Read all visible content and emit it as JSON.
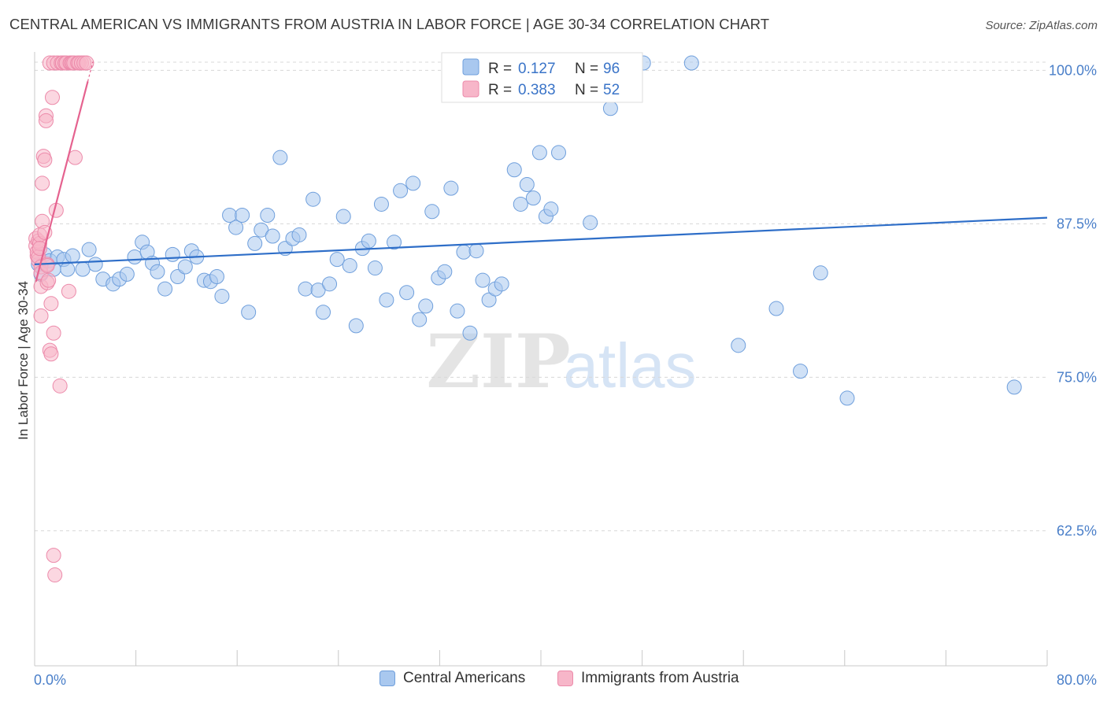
{
  "title": "CENTRAL AMERICAN VS IMMIGRANTS FROM AUSTRIA IN LABOR FORCE | AGE 30-34 CORRELATION CHART",
  "source": "Source: ZipAtlas.com",
  "watermark": {
    "zip": "ZIP",
    "atlas": "atlas"
  },
  "legend_top": [
    {
      "r_label": "R =",
      "r_value": "0.127",
      "n_label": "N =",
      "n_value": "96"
    },
    {
      "r_label": "R =",
      "r_value": "0.383",
      "n_label": "N =",
      "n_value": "52"
    }
  ],
  "legend_bottom": [
    "Central Americans",
    "Immigrants from Austria"
  ],
  "colors": {
    "blue_fill": "#a9c8ef",
    "blue_stroke": "#6f9fdc",
    "blue_line": "#2e6ec8",
    "pink_fill": "#f7b6c9",
    "pink_stroke": "#ec8aaa",
    "pink_line": "#e5628f",
    "grid": "#d8d8d8",
    "tick_text": "#4a7fc9"
  },
  "chart_data": {
    "type": "scatter",
    "title": "CENTRAL AMERICAN VS IMMIGRANTS FROM AUSTRIA IN LABOR FORCE | AGE 30-34 CORRELATION CHART",
    "xlabel": "",
    "ylabel": "In Labor Force | Age 30-34",
    "xlim": [
      0,
      80
    ],
    "ylim": [
      51.5,
      101.5
    ],
    "x_tick_labels": [
      "0.0%",
      "80.0%"
    ],
    "y_ticks": [
      62.5,
      75.0,
      87.5,
      100.0
    ],
    "y_tick_labels": [
      "62.5%",
      "75.0%",
      "87.5%",
      "100.0%"
    ],
    "grid": "horizontal dashed",
    "series": [
      {
        "name": "Central Americans",
        "r": 0.127,
        "n": 96,
        "trend": {
          "x": [
            0,
            80
          ],
          "y": [
            84.2,
            88.0
          ]
        },
        "points": [
          [
            0.3,
            84.2
          ],
          [
            0.5,
            83.4
          ],
          [
            0.8,
            85.0
          ],
          [
            1.2,
            84.5
          ],
          [
            1.5,
            83.8
          ],
          [
            1.8,
            84.8
          ],
          [
            2.3,
            84.6
          ],
          [
            2.6,
            83.8
          ],
          [
            3.0,
            84.9
          ],
          [
            3.8,
            83.8
          ],
          [
            4.3,
            85.4
          ],
          [
            4.8,
            84.2
          ],
          [
            5.4,
            83.0
          ],
          [
            6.2,
            82.6
          ],
          [
            6.7,
            83.0
          ],
          [
            7.3,
            83.4
          ],
          [
            7.9,
            84.8
          ],
          [
            8.5,
            86.0
          ],
          [
            8.9,
            85.2
          ],
          [
            9.3,
            84.3
          ],
          [
            9.7,
            83.6
          ],
          [
            10.3,
            82.2
          ],
          [
            10.9,
            85.0
          ],
          [
            11.3,
            83.2
          ],
          [
            11.9,
            84.0
          ],
          [
            12.4,
            85.3
          ],
          [
            12.8,
            84.8
          ],
          [
            13.4,
            82.9
          ],
          [
            13.9,
            82.8
          ],
          [
            14.4,
            83.2
          ],
          [
            14.8,
            81.6
          ],
          [
            15.4,
            88.2
          ],
          [
            15.9,
            87.2
          ],
          [
            16.4,
            88.2
          ],
          [
            16.9,
            80.3
          ],
          [
            17.4,
            85.9
          ],
          [
            17.9,
            87.0
          ],
          [
            18.4,
            88.2
          ],
          [
            18.8,
            86.5
          ],
          [
            19.4,
            92.9
          ],
          [
            19.8,
            85.5
          ],
          [
            20.4,
            86.3
          ],
          [
            20.9,
            86.6
          ],
          [
            21.4,
            82.2
          ],
          [
            22.0,
            89.5
          ],
          [
            22.4,
            82.1
          ],
          [
            22.8,
            80.3
          ],
          [
            23.3,
            82.6
          ],
          [
            23.9,
            84.6
          ],
          [
            24.4,
            88.1
          ],
          [
            24.9,
            84.1
          ],
          [
            25.4,
            79.2
          ],
          [
            25.9,
            85.5
          ],
          [
            26.4,
            86.1
          ],
          [
            26.9,
            83.9
          ],
          [
            27.4,
            89.1
          ],
          [
            27.8,
            81.3
          ],
          [
            28.4,
            86.0
          ],
          [
            28.9,
            90.2
          ],
          [
            29.4,
            81.9
          ],
          [
            29.9,
            90.8
          ],
          [
            30.4,
            79.7
          ],
          [
            30.9,
            80.8
          ],
          [
            31.4,
            88.5
          ],
          [
            31.9,
            83.1
          ],
          [
            32.4,
            83.6
          ],
          [
            32.9,
            90.4
          ],
          [
            33.4,
            80.4
          ],
          [
            33.9,
            85.2
          ],
          [
            34.4,
            78.6
          ],
          [
            34.9,
            85.3
          ],
          [
            35.4,
            82.9
          ],
          [
            35.9,
            81.3
          ],
          [
            36.4,
            82.2
          ],
          [
            36.9,
            82.6
          ],
          [
            37.4,
            98.0
          ],
          [
            37.9,
            91.9
          ],
          [
            38.4,
            89.1
          ],
          [
            38.9,
            90.7
          ],
          [
            39.4,
            89.6
          ],
          [
            39.9,
            93.3
          ],
          [
            40.4,
            88.1
          ],
          [
            40.8,
            88.7
          ],
          [
            41.4,
            93.3
          ],
          [
            42.4,
            100.6
          ],
          [
            43.9,
            87.6
          ],
          [
            45.5,
            96.9
          ],
          [
            48.1,
            100.6
          ],
          [
            51.9,
            100.6
          ],
          [
            55.6,
            77.6
          ],
          [
            58.6,
            80.6
          ],
          [
            60.5,
            75.5
          ],
          [
            62.1,
            83.5
          ],
          [
            64.2,
            73.3
          ],
          [
            77.4,
            74.2
          ]
        ]
      },
      {
        "name": "Immigrants from Austria",
        "r": 0.383,
        "n": 52,
        "trend": {
          "x": [
            0.1,
            4.2
          ],
          "y": [
            82.8,
            99.1
          ]
        },
        "points": [
          [
            0.1,
            86.3
          ],
          [
            0.1,
            85.7
          ],
          [
            0.2,
            84.9
          ],
          [
            0.2,
            85.2
          ],
          [
            0.3,
            86.1
          ],
          [
            0.3,
            84.5
          ],
          [
            0.3,
            84.8
          ],
          [
            0.4,
            85.9
          ],
          [
            0.4,
            86.6
          ],
          [
            0.4,
            85.5
          ],
          [
            0.5,
            84.0
          ],
          [
            0.5,
            83.5
          ],
          [
            0.5,
            80.0
          ],
          [
            0.5,
            82.4
          ],
          [
            0.6,
            90.8
          ],
          [
            0.6,
            87.7
          ],
          [
            0.7,
            93.0
          ],
          [
            0.8,
            92.7
          ],
          [
            0.8,
            86.8
          ],
          [
            0.9,
            96.3
          ],
          [
            0.9,
            95.9
          ],
          [
            1.0,
            84.2
          ],
          [
            1.0,
            82.7
          ],
          [
            1.0,
            84.1
          ],
          [
            1.1,
            82.9
          ],
          [
            1.2,
            100.6
          ],
          [
            1.2,
            77.2
          ],
          [
            1.3,
            81.0
          ],
          [
            1.3,
            76.9
          ],
          [
            1.4,
            97.8
          ],
          [
            1.5,
            100.6
          ],
          [
            1.5,
            78.6
          ],
          [
            1.5,
            60.5
          ],
          [
            1.6,
            58.9
          ],
          [
            1.7,
            88.6
          ],
          [
            1.8,
            100.6
          ],
          [
            2.0,
            74.3
          ],
          [
            2.1,
            100.6
          ],
          [
            2.2,
            100.6
          ],
          [
            2.4,
            100.6
          ],
          [
            2.5,
            100.6
          ],
          [
            2.7,
            82.0
          ],
          [
            2.8,
            100.6
          ],
          [
            2.9,
            100.6
          ],
          [
            3.0,
            100.6
          ],
          [
            3.1,
            100.6
          ],
          [
            3.2,
            92.9
          ],
          [
            3.4,
            100.6
          ],
          [
            3.5,
            100.6
          ],
          [
            3.7,
            100.6
          ],
          [
            3.9,
            100.6
          ],
          [
            4.1,
            100.6
          ]
        ]
      }
    ]
  }
}
